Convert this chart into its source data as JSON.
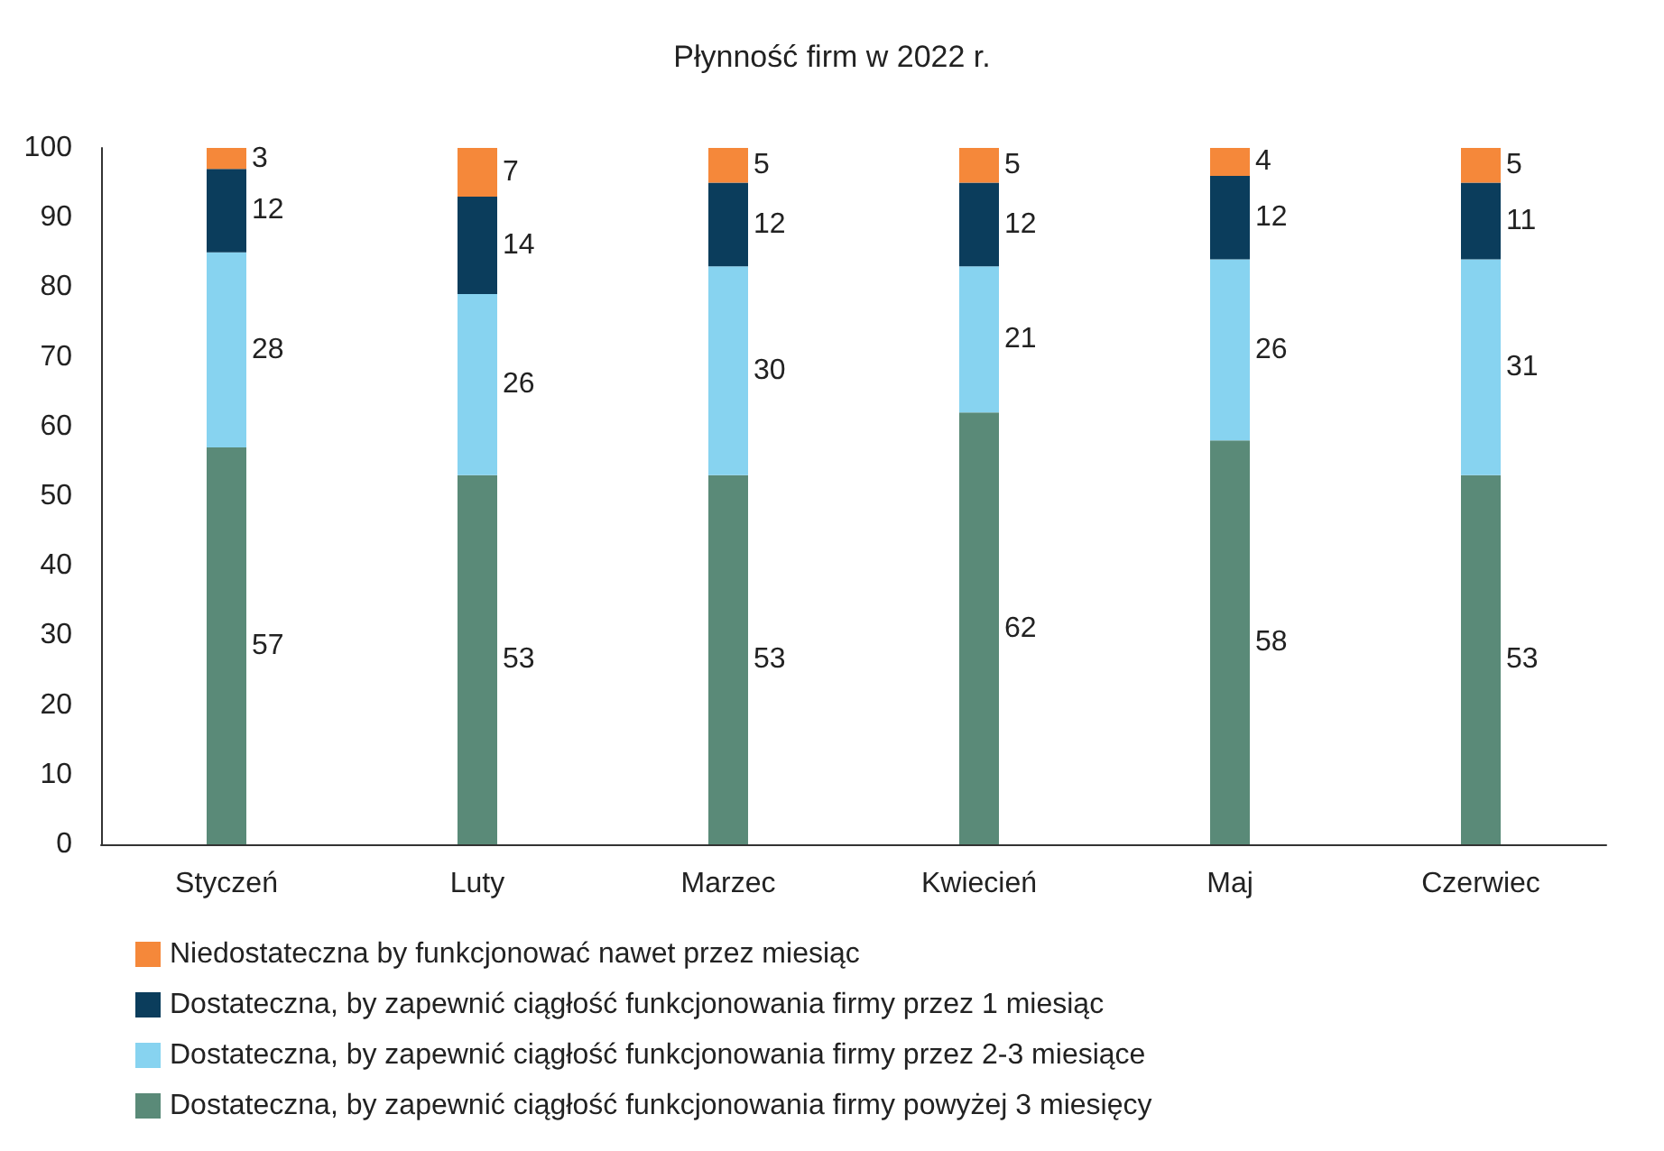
{
  "chart_data": {
    "type": "bar",
    "title": "Płynność firm w 2022 r.",
    "stacked": true,
    "data_labels": true,
    "legend": "bottom",
    "grid": false,
    "categories": [
      "Styczeń",
      "Luty",
      "Marzec",
      "Kwiecień",
      "Maj",
      "Czerwiec"
    ],
    "ylim": [
      0,
      100
    ],
    "yticks": [
      0,
      10,
      20,
      30,
      40,
      50,
      60,
      70,
      80,
      90,
      100
    ],
    "series": [
      {
        "name": "Dostateczna, by zapewnić ciągłość funkcjonowania firmy powyżej 3 miesięcy",
        "color": "#5a8a78",
        "values": [
          57,
          53,
          53,
          62,
          58,
          53
        ]
      },
      {
        "name": "Dostateczna, by zapewnić ciągłość funkcjonowania firmy przez 2-3 miesiące",
        "color": "#87d3f0",
        "values": [
          28,
          26,
          30,
          21,
          26,
          31
        ]
      },
      {
        "name": "Dostateczna, by zapewnić ciągłość funkcjonowania firmy przez 1 miesiąc",
        "color": "#0b3d5c",
        "values": [
          12,
          14,
          12,
          12,
          12,
          11
        ]
      },
      {
        "name": "Niedostateczna by funkcjonować nawet przez miesiąc",
        "color": "#f5883a",
        "values": [
          3,
          7,
          5,
          5,
          4,
          5
        ]
      }
    ]
  }
}
